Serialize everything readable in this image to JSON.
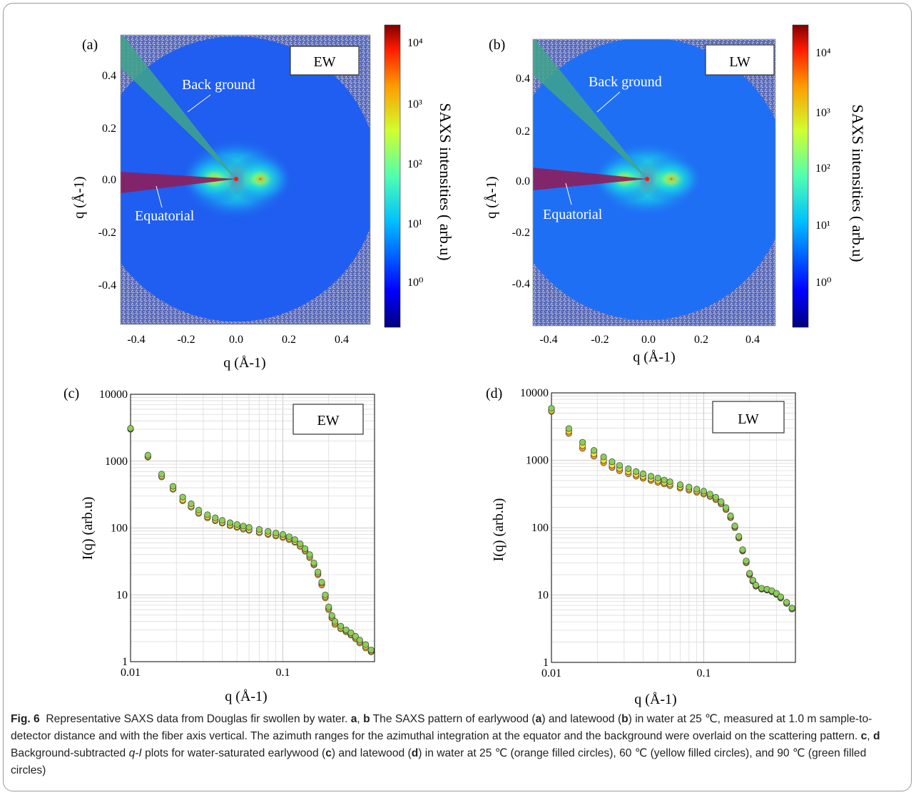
{
  "colors": {
    "detector_noise": "#6e7cc0",
    "detector_disc": "#1f5ef0",
    "sector_background": "#3fa58a",
    "sector_equatorial": "#8b2060",
    "series_25C": "#f39a1e",
    "series_60C": "#f3e23a",
    "series_90C": "#8ccf56",
    "frame_border": "#9a9a9a"
  },
  "panel_a": {
    "label": "(a)",
    "tag": "EW",
    "sector_background_label": "Back ground",
    "sector_equatorial_label": "Equatorial",
    "x_ticks": [
      "-0.4",
      "-0.2",
      "0.0",
      "0.2",
      "0.4"
    ],
    "y_ticks": [
      "0.4",
      "0.2",
      "0.0",
      "-0.2",
      "-0.4"
    ],
    "xlabel": "q (Å-1)",
    "ylabel": "q (Å-1)",
    "colorbar_ticks": [
      "10⁴",
      "10³",
      "10²",
      "10¹",
      "10⁰"
    ],
    "colorbar_label": "SAXS intensities ( arb.u)"
  },
  "panel_b": {
    "label": "(b)",
    "tag": "LW",
    "sector_background_label": "Back ground",
    "sector_equatorial_label": "Equatorial",
    "x_ticks": [
      "-0.4",
      "-0.2",
      "0.0",
      "0.2",
      "0.4"
    ],
    "y_ticks": [
      "0.4",
      "0.2",
      "0.0",
      "-0.2",
      "-0.4"
    ],
    "xlabel": "q (Å-1)",
    "ylabel": "q (Å-1)",
    "colorbar_ticks": [
      "10⁴",
      "10³",
      "10²",
      "10¹",
      "10⁰"
    ],
    "colorbar_label": "SAXS intensities ( arb.u)"
  },
  "chart_data": [
    {
      "panel": "c",
      "label": "(c)",
      "tag": "EW",
      "type": "scatter",
      "xscale": "log",
      "yscale": "log",
      "xlim": [
        0.01,
        0.4
      ],
      "ylim": [
        1,
        10000
      ],
      "x_tick_labels": [
        "0.01",
        "0.1"
      ],
      "y_tick_labels": [
        "1",
        "10",
        "100",
        "1000",
        "10000"
      ],
      "xlabel": "q (Å-1)",
      "ylabel": "I(q) (arb.u)",
      "grid": true,
      "series": [
        {
          "color": "#f39a1e",
          "points": [
            [
              0.01,
              3000
            ],
            [
              0.013,
              1150
            ],
            [
              0.016,
              580
            ],
            [
              0.019,
              380
            ],
            [
              0.022,
              255
            ],
            [
              0.025,
              205
            ],
            [
              0.028,
              165
            ],
            [
              0.032,
              142
            ],
            [
              0.036,
              128
            ],
            [
              0.04,
              118
            ],
            [
              0.045,
              108
            ],
            [
              0.05,
              102
            ],
            [
              0.055,
              96
            ],
            [
              0.06,
              92
            ],
            [
              0.07,
              85
            ],
            [
              0.08,
              80
            ],
            [
              0.09,
              76
            ],
            [
              0.1,
              72
            ],
            [
              0.11,
              67
            ],
            [
              0.12,
              61
            ],
            [
              0.13,
              53
            ],
            [
              0.14,
              45
            ],
            [
              0.15,
              36
            ],
            [
              0.16,
              28
            ],
            [
              0.17,
              20
            ],
            [
              0.18,
              14
            ],
            [
              0.19,
              9
            ],
            [
              0.2,
              6
            ],
            [
              0.21,
              4.5
            ],
            [
              0.22,
              3.6
            ],
            [
              0.24,
              3.1
            ],
            [
              0.26,
              2.8
            ],
            [
              0.28,
              2.5
            ],
            [
              0.3,
              2.2
            ],
            [
              0.32,
              1.9
            ],
            [
              0.35,
              1.6
            ],
            [
              0.38,
              1.4
            ]
          ]
        },
        {
          "color": "#f3e23a",
          "points": [
            [
              0.01,
              3050
            ],
            [
              0.013,
              1180
            ],
            [
              0.016,
              600
            ],
            [
              0.019,
              390
            ],
            [
              0.022,
              265
            ],
            [
              0.025,
              213
            ],
            [
              0.028,
              172
            ],
            [
              0.032,
              148
            ],
            [
              0.036,
              133
            ],
            [
              0.04,
              122
            ],
            [
              0.045,
              112
            ],
            [
              0.05,
              106
            ],
            [
              0.055,
              100
            ],
            [
              0.06,
              95
            ],
            [
              0.07,
              88
            ],
            [
              0.08,
              83
            ],
            [
              0.09,
              79
            ],
            [
              0.1,
              75
            ],
            [
              0.11,
              70
            ],
            [
              0.12,
              63
            ],
            [
              0.13,
              55
            ],
            [
              0.14,
              47
            ],
            [
              0.15,
              38
            ],
            [
              0.16,
              29
            ],
            [
              0.17,
              21
            ],
            [
              0.18,
              15
            ],
            [
              0.19,
              9.5
            ],
            [
              0.2,
              6.3
            ],
            [
              0.21,
              4.7
            ],
            [
              0.22,
              3.8
            ],
            [
              0.24,
              3.2
            ],
            [
              0.26,
              2.9
            ],
            [
              0.28,
              2.6
            ],
            [
              0.3,
              2.3
            ],
            [
              0.32,
              2.0
            ],
            [
              0.35,
              1.7
            ],
            [
              0.38,
              1.45
            ]
          ]
        },
        {
          "color": "#8ccf56",
          "points": [
            [
              0.01,
              3100
            ],
            [
              0.013,
              1230
            ],
            [
              0.016,
              640
            ],
            [
              0.019,
              420
            ],
            [
              0.022,
              290
            ],
            [
              0.025,
              230
            ],
            [
              0.028,
              185
            ],
            [
              0.032,
              158
            ],
            [
              0.036,
              142
            ],
            [
              0.04,
              130
            ],
            [
              0.045,
              120
            ],
            [
              0.05,
              113
            ],
            [
              0.055,
              107
            ],
            [
              0.06,
              102
            ],
            [
              0.07,
              95
            ],
            [
              0.08,
              89
            ],
            [
              0.09,
              84
            ],
            [
              0.1,
              80
            ],
            [
              0.11,
              74
            ],
            [
              0.12,
              67
            ],
            [
              0.13,
              58
            ],
            [
              0.14,
              49
            ],
            [
              0.15,
              40
            ],
            [
              0.16,
              30
            ],
            [
              0.17,
              22
            ],
            [
              0.18,
              15.5
            ],
            [
              0.19,
              10
            ],
            [
              0.2,
              6.6
            ],
            [
              0.21,
              4.9
            ],
            [
              0.22,
              4.0
            ],
            [
              0.24,
              3.4
            ],
            [
              0.26,
              3.0
            ],
            [
              0.28,
              2.7
            ],
            [
              0.3,
              2.4
            ],
            [
              0.32,
              2.1
            ],
            [
              0.35,
              1.8
            ],
            [
              0.38,
              1.5
            ]
          ]
        }
      ]
    },
    {
      "panel": "d",
      "label": "(d)",
      "tag": "LW",
      "type": "scatter",
      "xscale": "log",
      "yscale": "log",
      "xlim": [
        0.01,
        0.4
      ],
      "ylim": [
        1,
        10000
      ],
      "x_tick_labels": [
        "0.01",
        "0.1"
      ],
      "y_tick_labels": [
        "1",
        "10",
        "100",
        "1000",
        "10000"
      ],
      "xlabel": "q (Å-1)",
      "ylabel": "I(q) (arb.u)",
      "grid": true,
      "series": [
        {
          "color": "#f39a1e",
          "points": [
            [
              0.01,
              5300
            ],
            [
              0.013,
              2500
            ],
            [
              0.016,
              1500
            ],
            [
              0.019,
              1150
            ],
            [
              0.022,
              920
            ],
            [
              0.025,
              780
            ],
            [
              0.028,
              700
            ],
            [
              0.032,
              630
            ],
            [
              0.036,
              580
            ],
            [
              0.04,
              540
            ],
            [
              0.045,
              500
            ],
            [
              0.05,
              470
            ],
            [
              0.055,
              445
            ],
            [
              0.06,
              420
            ],
            [
              0.07,
              385
            ],
            [
              0.08,
              360
            ],
            [
              0.09,
              335
            ],
            [
              0.1,
              315
            ],
            [
              0.11,
              290
            ],
            [
              0.12,
              260
            ],
            [
              0.13,
              225
            ],
            [
              0.14,
              185
            ],
            [
              0.15,
              140
            ],
            [
              0.16,
              100
            ],
            [
              0.17,
              70
            ],
            [
              0.18,
              45
            ],
            [
              0.19,
              30
            ],
            [
              0.2,
              20
            ],
            [
              0.21,
              16
            ],
            [
              0.22,
              13.5
            ],
            [
              0.24,
              12.2
            ],
            [
              0.26,
              11.8
            ],
            [
              0.28,
              11.2
            ],
            [
              0.3,
              10.2
            ],
            [
              0.32,
              9
            ],
            [
              0.35,
              7.5
            ],
            [
              0.38,
              6.2
            ]
          ]
        },
        {
          "color": "#f3e23a",
          "points": [
            [
              0.01,
              5500
            ],
            [
              0.013,
              2700
            ],
            [
              0.016,
              1650
            ],
            [
              0.019,
              1250
            ],
            [
              0.022,
              1000
            ],
            [
              0.025,
              850
            ],
            [
              0.028,
              760
            ],
            [
              0.032,
              680
            ],
            [
              0.036,
              620
            ],
            [
              0.04,
              575
            ],
            [
              0.045,
              530
            ],
            [
              0.05,
              500
            ],
            [
              0.055,
              470
            ],
            [
              0.06,
              445
            ],
            [
              0.07,
              405
            ],
            [
              0.08,
              378
            ],
            [
              0.09,
              352
            ],
            [
              0.1,
              330
            ],
            [
              0.11,
              300
            ],
            [
              0.12,
              270
            ],
            [
              0.13,
              232
            ],
            [
              0.14,
              190
            ],
            [
              0.15,
              145
            ],
            [
              0.16,
              103
            ],
            [
              0.17,
              72
            ],
            [
              0.18,
              46
            ],
            [
              0.19,
              31
            ],
            [
              0.2,
              20.5
            ],
            [
              0.21,
              16.3
            ],
            [
              0.22,
              13.8
            ],
            [
              0.24,
              12.4
            ],
            [
              0.26,
              12
            ],
            [
              0.28,
              11.4
            ],
            [
              0.3,
              10.4
            ],
            [
              0.32,
              9.2
            ],
            [
              0.35,
              7.6
            ],
            [
              0.38,
              6.3
            ]
          ]
        },
        {
          "color": "#8ccf56",
          "points": [
            [
              0.01,
              5900
            ],
            [
              0.013,
              2950
            ],
            [
              0.016,
              1850
            ],
            [
              0.019,
              1400
            ],
            [
              0.022,
              1120
            ],
            [
              0.025,
              950
            ],
            [
              0.028,
              840
            ],
            [
              0.032,
              750
            ],
            [
              0.036,
              680
            ],
            [
              0.04,
              630
            ],
            [
              0.045,
              580
            ],
            [
              0.05,
              545
            ],
            [
              0.055,
              510
            ],
            [
              0.06,
              480
            ],
            [
              0.07,
              435
            ],
            [
              0.08,
              400
            ],
            [
              0.09,
              372
            ],
            [
              0.1,
              348
            ],
            [
              0.11,
              315
            ],
            [
              0.12,
              282
            ],
            [
              0.13,
              242
            ],
            [
              0.14,
              198
            ],
            [
              0.15,
              150
            ],
            [
              0.16,
              106
            ],
            [
              0.17,
              74
            ],
            [
              0.18,
              47
            ],
            [
              0.19,
              32
            ],
            [
              0.2,
              21
            ],
            [
              0.21,
              16.6
            ],
            [
              0.22,
              14
            ],
            [
              0.24,
              12.6
            ],
            [
              0.26,
              12.2
            ],
            [
              0.28,
              11.6
            ],
            [
              0.3,
              10.6
            ],
            [
              0.32,
              9.4
            ],
            [
              0.35,
              7.8
            ],
            [
              0.38,
              6.4
            ]
          ]
        }
      ]
    }
  ],
  "caption": {
    "fig_label": "Fig. 6",
    "text_1": "Representative SAXS data from Douglas fir swollen by water.",
    "a": "a",
    "comma_1": ", ",
    "b": "b",
    "text_2": " The SAXS pattern of earlywood (",
    "a2": "a",
    "text_3": ") and latewood (",
    "b2": "b",
    "text_4": ") in water at 25 ℃, measured at 1.0 m sample-to-detector distance and with the fiber axis vertical. The azimuth ranges for the azimuthal integration at the equator and the background were overlaid on the scattering pattern.",
    "c": "c",
    "comma_2": ", ",
    "d": "d",
    "text_5": " Background-subtracted ",
    "qi": "q-I",
    "text_6": " plots for water-saturated earlywood (",
    "c2": "c",
    "text_7": ") and latewood (",
    "d2": "d",
    "text_8": ") in water at 25 ℃ (orange filled circles), 60 ℃ (yellow filled circles), and 90 ℃ (green filled circles)"
  }
}
